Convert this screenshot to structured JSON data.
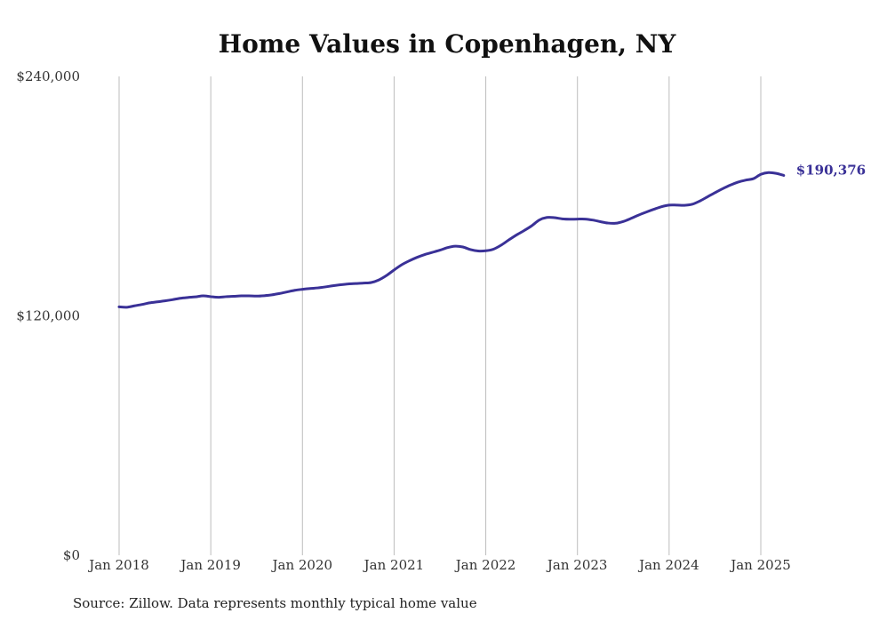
{
  "chart_data": {
    "type": "line",
    "title": "Home Values in Copenhagen, NY",
    "xlabel": "",
    "ylabel": "",
    "source_note": "Source: Zillow. Data represents monthly typical home value",
    "y_ticks": [
      {
        "value": 0,
        "label": "$0"
      },
      {
        "value": 120000,
        "label": "$120,000"
      },
      {
        "value": 240000,
        "label": "$240,000"
      }
    ],
    "x_ticks": [
      {
        "value": "2018-01",
        "label": "Jan 2018"
      },
      {
        "value": "2019-01",
        "label": "Jan 2019"
      },
      {
        "value": "2020-01",
        "label": "Jan 2020"
      },
      {
        "value": "2021-01",
        "label": "Jan 2021"
      },
      {
        "value": "2022-01",
        "label": "Jan 2022"
      },
      {
        "value": "2023-01",
        "label": "Jan 2023"
      },
      {
        "value": "2024-01",
        "label": "Jan 2024"
      },
      {
        "value": "2025-01",
        "label": "Jan 2025"
      }
    ],
    "ylim": [
      0,
      240000
    ],
    "xlim": [
      "2018-01",
      "2025-01"
    ],
    "grid": "vertical",
    "line_color": "#3a3197",
    "end_label": "$190,376",
    "series": [
      {
        "points": [
          [
            "2018-01",
            124500
          ],
          [
            "2018-02",
            124300
          ],
          [
            "2018-03",
            125000
          ],
          [
            "2018-04",
            125700
          ],
          [
            "2018-05",
            126500
          ],
          [
            "2018-06",
            127000
          ],
          [
            "2018-07",
            127500
          ],
          [
            "2018-08",
            128100
          ],
          [
            "2018-09",
            128800
          ],
          [
            "2018-10",
            129200
          ],
          [
            "2018-11",
            129500
          ],
          [
            "2018-12",
            130000
          ],
          [
            "2019-01",
            129600
          ],
          [
            "2019-02",
            129300
          ],
          [
            "2019-03",
            129600
          ],
          [
            "2019-04",
            129800
          ],
          [
            "2019-05",
            130000
          ],
          [
            "2019-06",
            130000
          ],
          [
            "2019-07",
            129900
          ],
          [
            "2019-08",
            130100
          ],
          [
            "2019-09",
            130500
          ],
          [
            "2019-10",
            131200
          ],
          [
            "2019-11",
            132000
          ],
          [
            "2019-12",
            132800
          ],
          [
            "2020-01",
            133300
          ],
          [
            "2020-02",
            133700
          ],
          [
            "2020-03",
            134000
          ],
          [
            "2020-04",
            134500
          ],
          [
            "2020-05",
            135100
          ],
          [
            "2020-06",
            135600
          ],
          [
            "2020-07",
            136000
          ],
          [
            "2020-08",
            136200
          ],
          [
            "2020-09",
            136400
          ],
          [
            "2020-10",
            136700
          ],
          [
            "2020-11",
            138000
          ],
          [
            "2020-12",
            140200
          ],
          [
            "2021-01",
            143000
          ],
          [
            "2021-02",
            145600
          ],
          [
            "2021-03",
            147600
          ],
          [
            "2021-04",
            149300
          ],
          [
            "2021-05",
            150700
          ],
          [
            "2021-06",
            151800
          ],
          [
            "2021-07",
            152900
          ],
          [
            "2021-08",
            154200
          ],
          [
            "2021-09",
            154900
          ],
          [
            "2021-10",
            154500
          ],
          [
            "2021-11",
            153200
          ],
          [
            "2021-12",
            152500
          ],
          [
            "2022-01",
            152600
          ],
          [
            "2022-02",
            153400
          ],
          [
            "2022-03",
            155400
          ],
          [
            "2022-04",
            158000
          ],
          [
            "2022-05",
            160500
          ],
          [
            "2022-06",
            162700
          ],
          [
            "2022-07",
            165100
          ],
          [
            "2022-08",
            168000
          ],
          [
            "2022-09",
            169300
          ],
          [
            "2022-10",
            169200
          ],
          [
            "2022-11",
            168600
          ],
          [
            "2022-12",
            168400
          ],
          [
            "2023-01",
            168500
          ],
          [
            "2023-02",
            168500
          ],
          [
            "2023-03",
            168000
          ],
          [
            "2023-04",
            167200
          ],
          [
            "2023-05",
            166500
          ],
          [
            "2023-06",
            166400
          ],
          [
            "2023-07",
            167300
          ],
          [
            "2023-08",
            168800
          ],
          [
            "2023-09",
            170500
          ],
          [
            "2023-10",
            172000
          ],
          [
            "2023-11",
            173400
          ],
          [
            "2023-12",
            174700
          ],
          [
            "2024-01",
            175500
          ],
          [
            "2024-02",
            175500
          ],
          [
            "2024-03",
            175400
          ],
          [
            "2024-04",
            175900
          ],
          [
            "2024-05",
            177500
          ],
          [
            "2024-06",
            179600
          ],
          [
            "2024-07",
            181700
          ],
          [
            "2024-08",
            183700
          ],
          [
            "2024-09",
            185500
          ],
          [
            "2024-10",
            187000
          ],
          [
            "2024-11",
            188000
          ],
          [
            "2024-12",
            188700
          ],
          [
            "2025-01",
            190900
          ],
          [
            "2025-02",
            191800
          ],
          [
            "2025-03",
            191400
          ],
          [
            "2025-04",
            190376
          ]
        ]
      }
    ]
  }
}
